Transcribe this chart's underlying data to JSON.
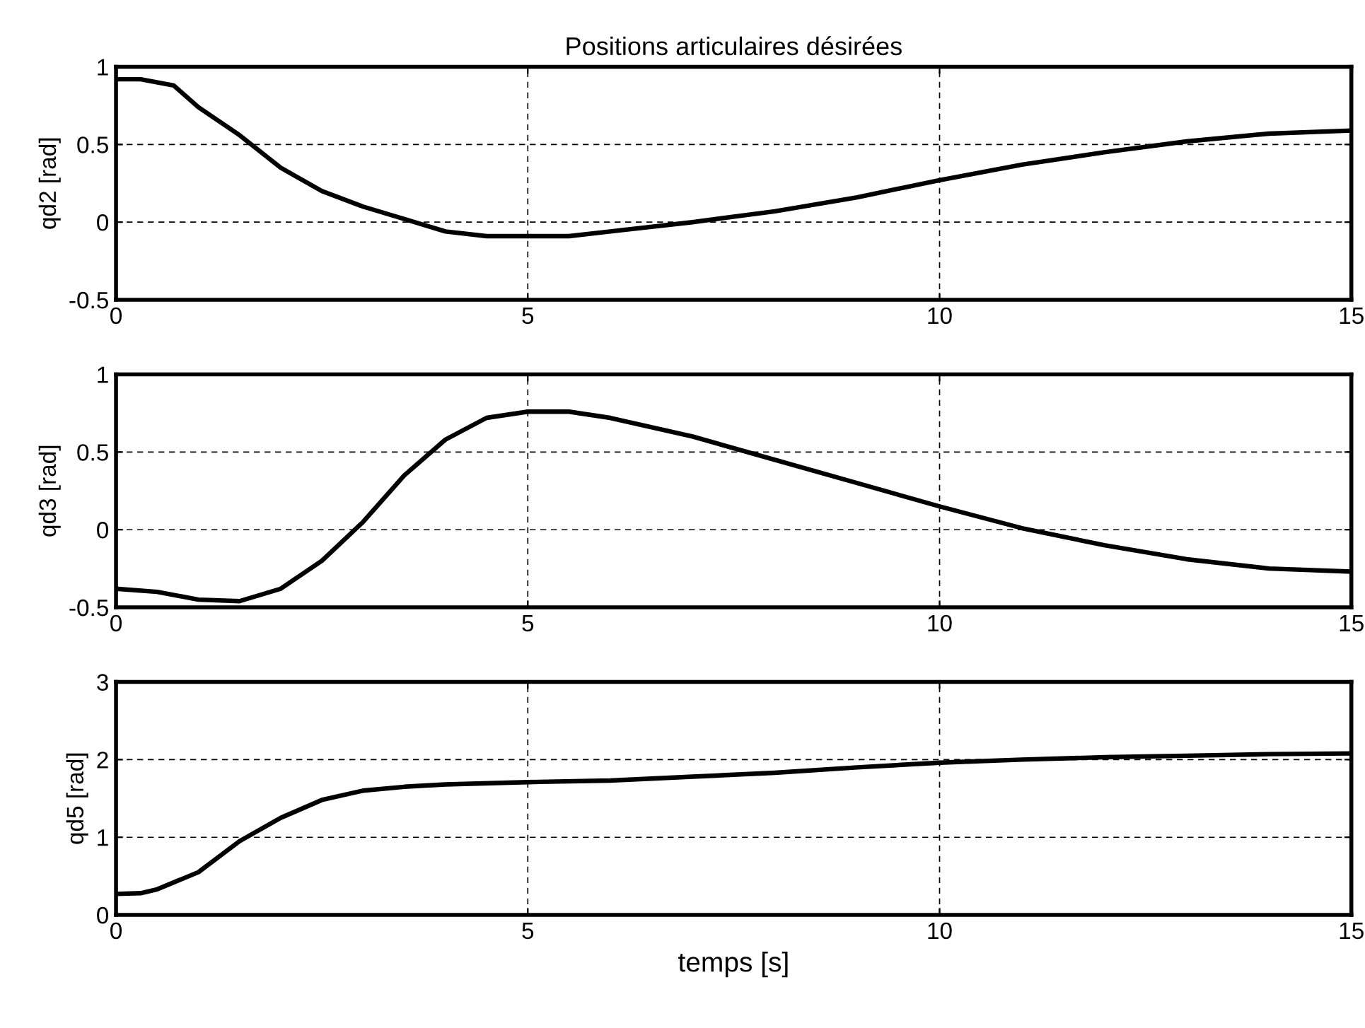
{
  "chart_data": [
    {
      "type": "line",
      "title": "Positions articulaires désirées",
      "ylabel": "qd2 [rad]",
      "xlim": [
        0,
        15
      ],
      "xticks": [
        0,
        5,
        10,
        15
      ],
      "ylim": [
        -0.5,
        1
      ],
      "yticks": [
        -0.5,
        0,
        0.5,
        1
      ],
      "grid": true,
      "marker": "none",
      "line_style": "solid",
      "series": [
        {
          "color": "#000000",
          "x": [
            0,
            0.3,
            0.7,
            1,
            1.5,
            2,
            2.5,
            3,
            3.5,
            4,
            4.5,
            5,
            5.5,
            6,
            7,
            8,
            9,
            10,
            11,
            12,
            13,
            14,
            15
          ],
          "values": [
            0.92,
            0.92,
            0.88,
            0.74,
            0.56,
            0.35,
            0.2,
            0.1,
            0.02,
            -0.06,
            -0.09,
            -0.09,
            -0.09,
            -0.06,
            0.0,
            0.07,
            0.16,
            0.27,
            0.37,
            0.45,
            0.52,
            0.57,
            0.59
          ]
        }
      ]
    },
    {
      "type": "line",
      "ylabel": "qd3 [rad]",
      "xlim": [
        0,
        15
      ],
      "xticks": [
        0,
        5,
        10,
        15
      ],
      "ylim": [
        -0.5,
        1
      ],
      "yticks": [
        -0.5,
        0,
        0.5,
        1
      ],
      "grid": true,
      "marker": "none",
      "line_style": "solid",
      "series": [
        {
          "color": "#000000",
          "x": [
            0,
            0.5,
            1,
            1.5,
            2,
            2.5,
            3,
            3.5,
            4,
            4.5,
            5,
            5.5,
            6,
            7,
            8,
            9,
            10,
            11,
            12,
            13,
            14,
            15
          ],
          "values": [
            -0.38,
            -0.4,
            -0.45,
            -0.46,
            -0.38,
            -0.2,
            0.05,
            0.35,
            0.58,
            0.72,
            0.76,
            0.76,
            0.72,
            0.6,
            0.45,
            0.3,
            0.15,
            0.01,
            -0.1,
            -0.19,
            -0.25,
            -0.27
          ]
        }
      ]
    },
    {
      "type": "line",
      "ylabel": "qd5 [rad]",
      "xlabel": "temps [s]",
      "xlim": [
        0,
        15
      ],
      "xticks": [
        0,
        5,
        10,
        15
      ],
      "ylim": [
        0,
        3
      ],
      "yticks": [
        0,
        1,
        2,
        3
      ],
      "grid": true,
      "marker": "none",
      "line_style": "solid",
      "series": [
        {
          "color": "#000000",
          "x": [
            0,
            0.3,
            0.5,
            1,
            1.5,
            2,
            2.5,
            3,
            3.5,
            4,
            5,
            6,
            7,
            8,
            9,
            10,
            11,
            12,
            13,
            14,
            15
          ],
          "values": [
            0.27,
            0.28,
            0.33,
            0.55,
            0.95,
            1.25,
            1.48,
            1.6,
            1.65,
            1.68,
            1.71,
            1.73,
            1.78,
            1.83,
            1.9,
            1.96,
            2.0,
            2.03,
            2.05,
            2.07,
            2.08
          ]
        }
      ]
    }
  ]
}
